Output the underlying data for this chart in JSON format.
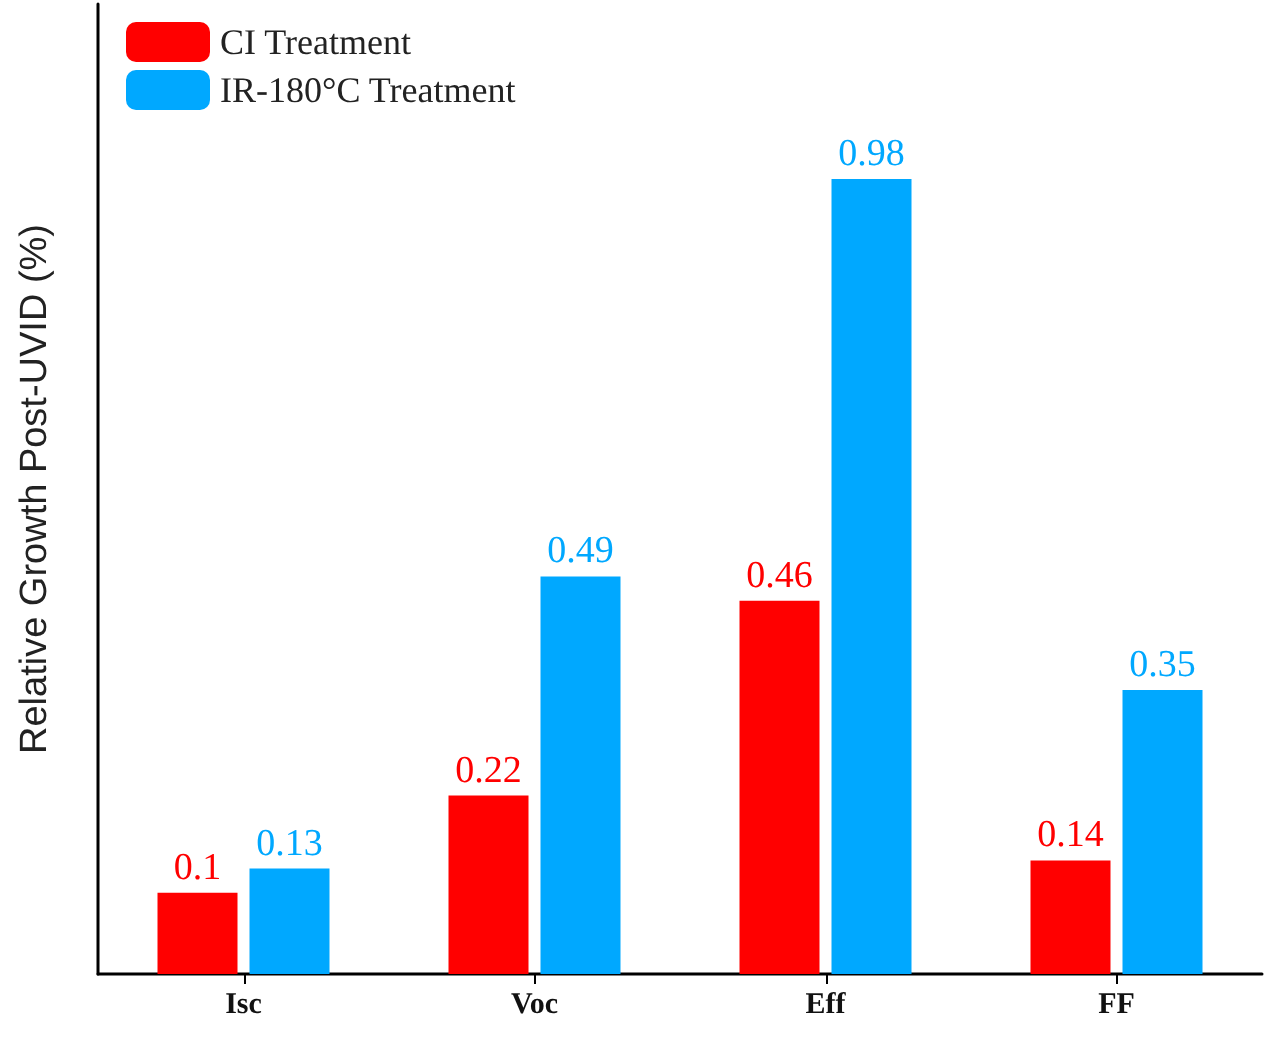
{
  "chart_data": {
    "type": "bar",
    "ylabel": "Relative Growth Post-UVID (%)",
    "categories": [
      "Isc",
      "Voc",
      "Eff",
      "FF"
    ],
    "series": [
      {
        "name": "CI Treatment",
        "color": "#ff0000",
        "values": [
          0.1,
          0.22,
          0.46,
          0.14
        ]
      },
      {
        "name": "IR-180°C Treatment",
        "color": "#00a8ff",
        "values": [
          0.13,
          0.49,
          0.98,
          0.35
        ]
      }
    ],
    "data_labels": true,
    "legend": "top left",
    "grid": false,
    "tick_labels": "x"
  }
}
